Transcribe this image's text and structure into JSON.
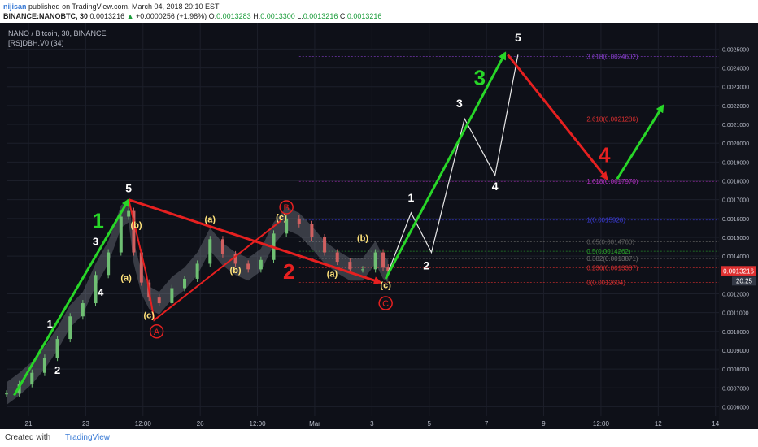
{
  "header": {
    "user": "nijisan",
    "published": "published on TradingView.com, March 04, 2018 20:10 EST",
    "symbol": "BINANCE:NANOBTC, 30",
    "price": "0.0013216",
    "change": "+0.0000256 (+1.98%)",
    "o_label": "O:",
    "o_value": "0.0013283",
    "h_label": "H:",
    "h_value": "0.0013300",
    "l_label": "L:",
    "l_value": "0.0013216",
    "c_label": "C:",
    "c_value": "0.0013216"
  },
  "footer": {
    "created_with": "Created with",
    "brand": "TradingView"
  },
  "chart_data": {
    "type": "line",
    "title": "NANO / Bitcoin, 30, BINANCE",
    "indicator": "[RS]DBH.V0 (34)",
    "ylim": [
      0.00055,
      0.00264
    ],
    "price_ticks": [
      "0.0025000",
      "0.0024000",
      "0.0023000",
      "0.0022000",
      "0.0021000",
      "0.0020000",
      "0.0019000",
      "0.0018000",
      "0.0017000",
      "0.0016000",
      "0.0015000",
      "0.0014000",
      "0.0012000",
      "0.0011000",
      "0.0010000",
      "0.0009000",
      "0.0008000",
      "0.0007000",
      "0.0006000"
    ],
    "current_price": "0.0013216",
    "countdown": "20:25",
    "x_ticks": [
      "21",
      "23",
      "12:00",
      "26",
      "12:00",
      "Mar",
      "3",
      "5",
      "7",
      "9",
      "12:00",
      "12",
      "14"
    ],
    "price_path": [
      [
        0.0,
        0.00067
      ],
      [
        0.5,
        0.00072
      ],
      [
        1.0,
        0.00078
      ],
      [
        1.5,
        0.00086
      ],
      [
        2.0,
        0.00096
      ],
      [
        2.5,
        0.00108
      ],
      [
        3.0,
        0.00115
      ],
      [
        3.5,
        0.0013
      ],
      [
        4.0,
        0.00142
      ],
      [
        4.5,
        0.00161
      ],
      [
        4.8,
        0.00164
      ],
      [
        5.0,
        0.00142
      ],
      [
        5.3,
        0.00126
      ],
      [
        5.6,
        0.00118
      ],
      [
        6.0,
        0.00115
      ],
      [
        6.5,
        0.00123
      ],
      [
        7.0,
        0.00128
      ],
      [
        7.5,
        0.00136
      ],
      [
        8.0,
        0.00149
      ],
      [
        8.5,
        0.00141
      ],
      [
        9.0,
        0.00136
      ],
      [
        9.5,
        0.00133
      ],
      [
        10.0,
        0.00138
      ],
      [
        10.5,
        0.00152
      ],
      [
        11.0,
        0.0016
      ],
      [
        11.5,
        0.00157
      ],
      [
        12.0,
        0.0015
      ],
      [
        12.5,
        0.00142
      ],
      [
        13.0,
        0.00137
      ],
      [
        13.5,
        0.00133
      ],
      [
        14.0,
        0.00133
      ],
      [
        14.5,
        0.00142
      ],
      [
        14.8,
        0.00134
      ],
      [
        15.0,
        0.00132
      ]
    ],
    "fib_levels": [
      {
        "label": "3.618(0.0024602)",
        "value": 0.0024602,
        "color": "#8a3fd1"
      },
      {
        "label": "2.618(0.0021286)",
        "value": 0.0021286,
        "color": "#e03030"
      },
      {
        "label": "1.618(0.0017970)",
        "value": 0.001797,
        "color": "#b030c0"
      },
      {
        "label": "1(0.0015920)",
        "value": 0.001592,
        "color": "#3a3ad0"
      },
      {
        "label": "0.65(0.0014760)",
        "value": 0.001476,
        "color": "#606060"
      },
      {
        "label": "0.5(0.0014262)",
        "value": 0.0014262,
        "color": "#2aa02a"
      },
      {
        "label": "0.382(0.0013871)",
        "value": 0.0013871,
        "color": "#707070"
      },
      {
        "label": "0.236(0.0013387)",
        "value": 0.0013387,
        "color": "#e03030"
      },
      {
        "label": "0(0.0012604)",
        "value": 0.0012604,
        "color": "#e03030"
      }
    ],
    "green_arrows": [
      [
        [
          0.3,
          0.00066
        ],
        [
          4.8,
          0.0017
        ]
      ],
      [
        [
          14.9,
          0.00128
        ],
        [
          19.6,
          0.00248
        ]
      ],
      [
        [
          24.0,
          0.00181
        ],
        [
          25.8,
          0.0022
        ]
      ]
    ],
    "red_arrows": [
      [
        [
          4.8,
          0.0017
        ],
        [
          14.7,
          0.00126
        ]
      ],
      [
        [
          19.7,
          0.00247
        ],
        [
          23.6,
          0.00181
        ]
      ]
    ],
    "red_lines": [
      [
        [
          4.8,
          0.0017
        ],
        [
          5.5,
          0.0013
        ],
        [
          5.8,
          0.00106
        ],
        [
          10.8,
          0.00159
        ]
      ]
    ],
    "forecast_path": [
      [
        14.9,
        0.00128
      ],
      [
        15.9,
        0.00163
      ],
      [
        16.7,
        0.00142
      ],
      [
        18.0,
        0.00213
      ],
      [
        19.2,
        0.00183
      ],
      [
        20.1,
        0.00247
      ]
    ],
    "labels": [
      {
        "text": "1",
        "x": 1.7,
        "y": 0.00102,
        "color": "#ffffff",
        "size": 13
      },
      {
        "text": "2",
        "x": 2.0,
        "y": 0.000775,
        "color": "#ffffff",
        "size": 13
      },
      {
        "text": "3",
        "x": 3.5,
        "y": 0.00146,
        "color": "#ffffff",
        "size": 13
      },
      {
        "text": "4",
        "x": 3.7,
        "y": 0.00119,
        "color": "#ffffff",
        "size": 13
      },
      {
        "text": "5",
        "x": 4.8,
        "y": 0.00174,
        "color": "#ffffff",
        "size": 14
      },
      {
        "text": "(b)",
        "x": 5.1,
        "y": 0.00155,
        "color": "#ffe27a",
        "size": 11
      },
      {
        "text": "(a)",
        "x": 4.7,
        "y": 0.00127,
        "color": "#ffe27a",
        "size": 11
      },
      {
        "text": "(c)",
        "x": 5.6,
        "y": 0.00107,
        "color": "#ffe27a",
        "size": 11
      },
      {
        "text": "(a)",
        "x": 8.0,
        "y": 0.00158,
        "color": "#ffe27a",
        "size": 11
      },
      {
        "text": "(b)",
        "x": 9.0,
        "y": 0.00131,
        "color": "#ffe27a",
        "size": 11
      },
      {
        "text": "(c)",
        "x": 10.8,
        "y": 0.00159,
        "color": "#ffe27a",
        "size": 11
      },
      {
        "text": "(a)",
        "x": 12.8,
        "y": 0.00129,
        "color": "#ffe27a",
        "size": 11
      },
      {
        "text": "(b)",
        "x": 14.0,
        "y": 0.00148,
        "color": "#ffe27a",
        "size": 11
      },
      {
        "text": "(c)",
        "x": 14.9,
        "y": 0.00123,
        "color": "#ffe27a",
        "size": 11
      },
      {
        "text": "1",
        "x": 15.9,
        "y": 0.00169,
        "color": "#ffffff",
        "size": 14
      },
      {
        "text": "2",
        "x": 16.5,
        "y": 0.00133,
        "color": "#ffffff",
        "size": 14
      },
      {
        "text": "3",
        "x": 17.8,
        "y": 0.00219,
        "color": "#ffffff",
        "size": 14
      },
      {
        "text": "4",
        "x": 19.2,
        "y": 0.00175,
        "color": "#ffffff",
        "size": 14
      },
      {
        "text": "5",
        "x": 20.1,
        "y": 0.00254,
        "color": "#ffffff",
        "size": 14
      },
      {
        "text": "1",
        "x": 3.6,
        "y": 0.00155,
        "color": "#28d628",
        "size": 26
      },
      {
        "text": "2",
        "x": 11.1,
        "y": 0.00128,
        "color": "#e62020",
        "size": 26
      },
      {
        "text": "3",
        "x": 18.6,
        "y": 0.00231,
        "color": "#28d628",
        "size": 26
      },
      {
        "text": "4",
        "x": 23.5,
        "y": 0.0019,
        "color": "#e62020",
        "size": 26
      }
    ],
    "circled_labels": [
      {
        "text": "A",
        "x": 5.9,
        "y": 0.001,
        "color": "#e62020"
      },
      {
        "text": "B",
        "x": 11.0,
        "y": 0.00166,
        "color": "#e62020"
      },
      {
        "text": "C",
        "x": 14.9,
        "y": 0.00115,
        "color": "#e62020"
      }
    ]
  }
}
